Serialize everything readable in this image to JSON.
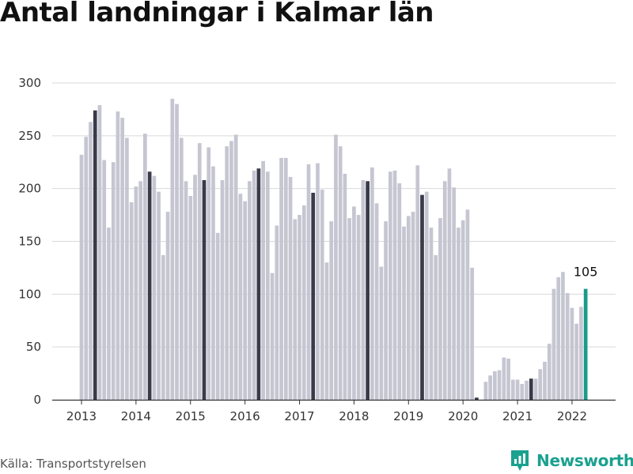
{
  "chart_data": {
    "type": "bar",
    "title": "Antal landningar i Kalmar län",
    "xlabel": "",
    "ylabel": "",
    "ylim": [
      0,
      300
    ],
    "yticks": [
      0,
      50,
      100,
      150,
      200,
      250,
      300
    ],
    "grid": true,
    "legend": "none",
    "year_tick_labels": [
      "2013",
      "2014",
      "2015",
      "2016",
      "2017",
      "2018",
      "2019",
      "2020",
      "2021",
      "2022"
    ],
    "months": [
      "2013-01",
      "2013-02",
      "2013-03",
      "2013-04",
      "2013-05",
      "2013-06",
      "2013-07",
      "2013-08",
      "2013-09",
      "2013-10",
      "2013-11",
      "2013-12",
      "2014-01",
      "2014-02",
      "2014-03",
      "2014-04",
      "2014-05",
      "2014-06",
      "2014-07",
      "2014-08",
      "2014-09",
      "2014-10",
      "2014-11",
      "2014-12",
      "2015-01",
      "2015-02",
      "2015-03",
      "2015-04",
      "2015-05",
      "2015-06",
      "2015-07",
      "2015-08",
      "2015-09",
      "2015-10",
      "2015-11",
      "2015-12",
      "2016-01",
      "2016-02",
      "2016-03",
      "2016-04",
      "2016-05",
      "2016-06",
      "2016-07",
      "2016-08",
      "2016-09",
      "2016-10",
      "2016-11",
      "2016-12",
      "2017-01",
      "2017-02",
      "2017-03",
      "2017-04",
      "2017-05",
      "2017-06",
      "2017-07",
      "2017-08",
      "2017-09",
      "2017-10",
      "2017-11",
      "2017-12",
      "2018-01",
      "2018-02",
      "2018-03",
      "2018-04",
      "2018-05",
      "2018-06",
      "2018-07",
      "2018-08",
      "2018-09",
      "2018-10",
      "2018-11",
      "2018-12",
      "2019-01",
      "2019-02",
      "2019-03",
      "2019-04",
      "2019-05",
      "2019-06",
      "2019-07",
      "2019-08",
      "2019-09",
      "2019-10",
      "2019-11",
      "2019-12",
      "2020-01",
      "2020-02",
      "2020-03",
      "2020-04",
      "2020-05",
      "2020-06",
      "2020-07",
      "2020-08",
      "2020-09",
      "2020-10",
      "2020-11",
      "2020-12",
      "2021-01",
      "2021-02",
      "2021-03",
      "2021-04",
      "2021-05",
      "2021-06",
      "2021-07",
      "2021-08",
      "2021-09",
      "2021-10",
      "2021-11",
      "2021-12",
      "2022-01",
      "2022-02",
      "2022-03",
      "2022-04"
    ],
    "values": [
      232,
      249,
      263,
      274,
      279,
      227,
      163,
      225,
      273,
      267,
      248,
      187,
      202,
      207,
      252,
      216,
      212,
      197,
      137,
      178,
      285,
      280,
      248,
      207,
      193,
      213,
      243,
      208,
      239,
      221,
      158,
      208,
      240,
      245,
      251,
      195,
      188,
      207,
      217,
      219,
      226,
      216,
      120,
      165,
      229,
      229,
      211,
      171,
      175,
      184,
      223,
      196,
      224,
      199,
      130,
      169,
      251,
      240,
      214,
      172,
      183,
      175,
      208,
      207,
      220,
      186,
      126,
      169,
      216,
      217,
      205,
      164,
      174,
      178,
      222,
      194,
      197,
      163,
      137,
      172,
      207,
      219,
      201,
      163,
      170,
      180,
      125,
      2,
      null,
      17,
      23,
      27,
      28,
      40,
      39,
      19,
      19,
      15,
      18,
      20,
      20,
      29,
      36,
      53,
      105,
      116,
      121,
      101,
      87,
      72,
      88,
      105
    ],
    "highlight_color": "#1a9b89",
    "highlight_label": "105",
    "bar_color": "#c6c6d2",
    "april_color": "#3a3a4a",
    "grid_color": "#d9d9d9"
  },
  "source_text": "Källa: Transportstyrelsen",
  "brand": {
    "name": "Newsworthy",
    "color": "#1aa18f"
  }
}
